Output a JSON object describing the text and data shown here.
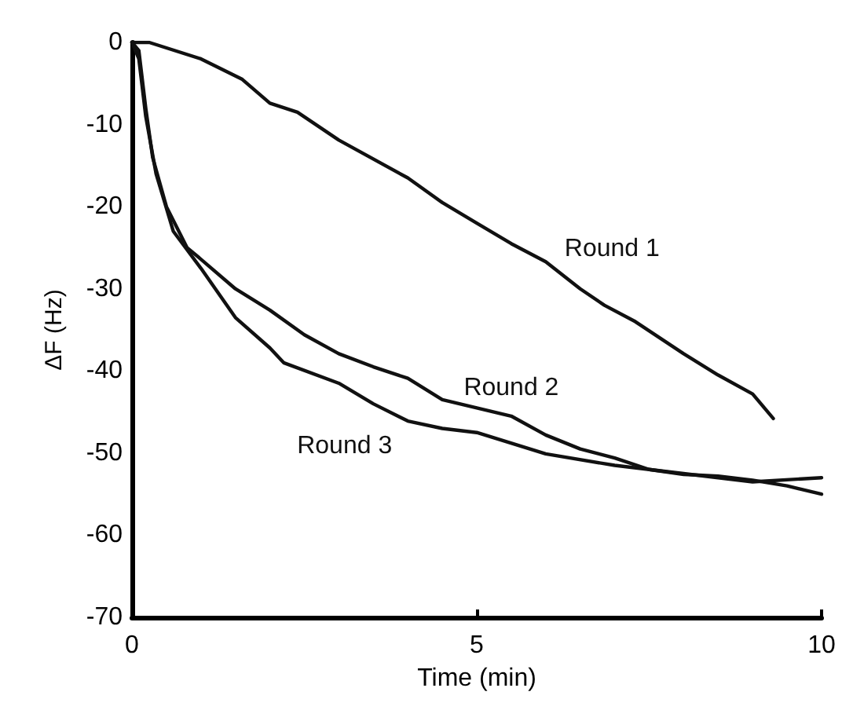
{
  "chart_data": {
    "type": "line",
    "xlabel": "Time (min)",
    "ylabel": "ΔF (Hz)",
    "xlim": [
      0,
      10
    ],
    "xticks": [
      0,
      5,
      10
    ],
    "ylim": [
      -70,
      0
    ],
    "yticks": [
      -70,
      -60,
      -50,
      -40,
      -30,
      -20,
      -10,
      0
    ],
    "grid": false,
    "marker": "none",
    "line_style": "solid",
    "series": [
      {
        "name": "Round 1",
        "color": "#111111",
        "x": [
          0,
          0.25,
          1,
          1.6,
          2,
          2.4,
          3,
          4,
          4.5,
          5,
          5.5,
          6,
          6.5,
          6.85,
          7.3,
          8,
          8.5,
          9,
          9.3
        ],
        "values": [
          0,
          0,
          -2,
          -4.5,
          -7.4,
          -8.5,
          -11.9,
          -16.5,
          -19.5,
          -22,
          -24.5,
          -26.7,
          -30,
          -32,
          -34,
          -37.9,
          -40.5,
          -42.8,
          -45.8
        ]
      },
      {
        "name": "Round 2",
        "color": "#111111",
        "x": [
          0,
          0.1,
          0.2,
          0.3,
          0.5,
          0.8,
          1,
          1.5,
          2,
          2.5,
          3,
          3.5,
          4,
          4.5,
          5,
          5.5,
          6,
          6.5,
          7,
          7.5,
          8,
          8.5,
          9,
          9.5,
          10
        ],
        "values": [
          0,
          -1,
          -8,
          -14,
          -20,
          -25,
          -26.4,
          -30,
          -32.6,
          -35.6,
          -37.9,
          -39.5,
          -40.9,
          -43.5,
          -44.5,
          -45.5,
          -47.8,
          -49.5,
          -50.6,
          -52,
          -52.6,
          -52.8,
          -53.3,
          -54,
          -55
        ]
      },
      {
        "name": "Round 3",
        "color": "#111111",
        "x": [
          0,
          0.1,
          0.2,
          0.35,
          0.6,
          1,
          1.5,
          2,
          2.2,
          3,
          3.5,
          4,
          4.5,
          5,
          6,
          7,
          8,
          9,
          10
        ],
        "values": [
          0,
          -2,
          -9,
          -16,
          -23,
          -27.5,
          -33.5,
          -37.2,
          -39,
          -41.5,
          -44,
          -46.1,
          -47,
          -47.5,
          -50.1,
          -51.5,
          -52.5,
          -53.5,
          -53
        ]
      }
    ]
  }
}
